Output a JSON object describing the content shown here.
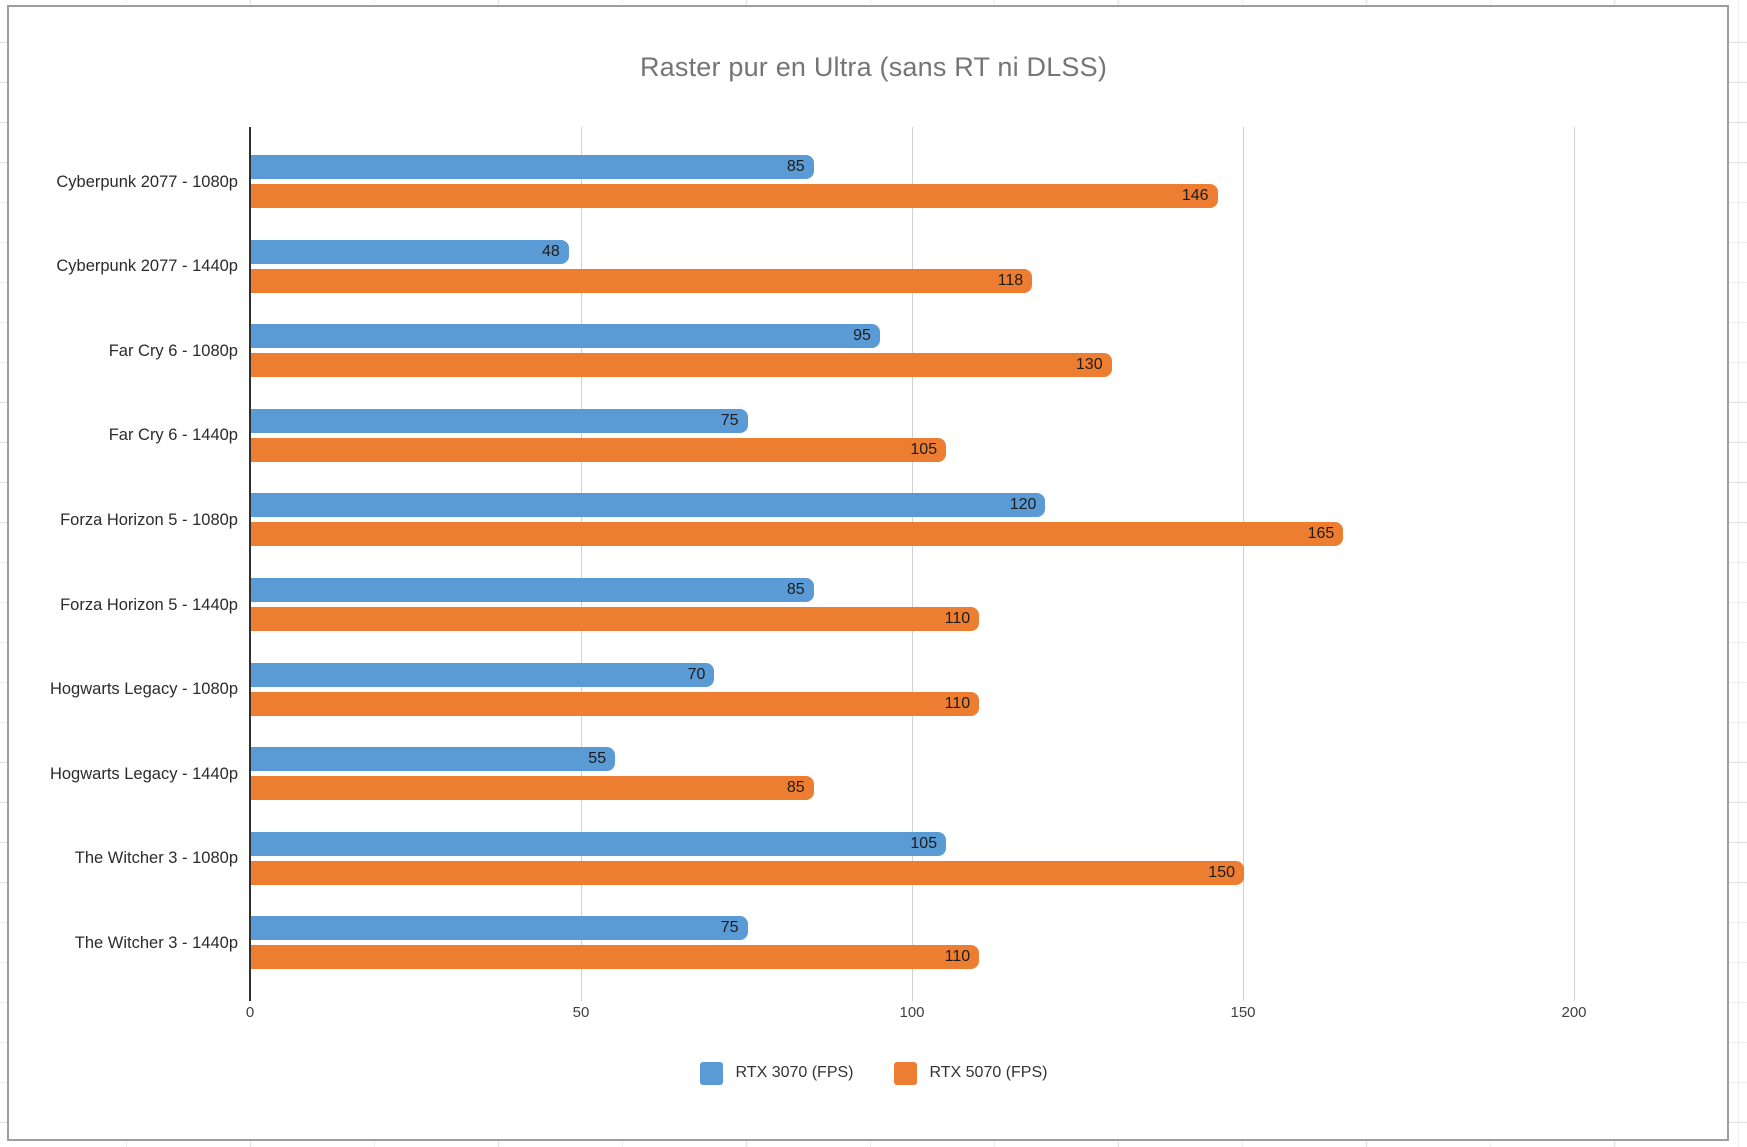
{
  "chart_data": {
    "type": "bar",
    "orientation": "horizontal",
    "title": "Raster pur en Ultra (sans RT ni DLSS)",
    "categories": [
      "Cyberpunk 2077 - 1080p",
      "Cyberpunk 2077 - 1440p",
      "Far Cry 6 - 1080p",
      "Far Cry 6 - 1440p",
      "Forza Horizon 5 - 1080p",
      "Forza Horizon 5 - 1440p",
      "Hogwarts Legacy - 1080p",
      "Hogwarts Legacy - 1440p",
      "The Witcher 3 - 1080p",
      "The Witcher 3 - 1440p"
    ],
    "series": [
      {
        "name": "RTX 3070 (FPS)",
        "color": "#5B9BD5",
        "values": [
          85,
          48,
          95,
          75,
          120,
          85,
          70,
          55,
          105,
          75
        ]
      },
      {
        "name": "RTX 5070 (FPS)",
        "color": "#ED7D31",
        "values": [
          146,
          118,
          130,
          105,
          165,
          110,
          110,
          85,
          150,
          110
        ]
      }
    ],
    "x_ticks": [
      0,
      50,
      100,
      150,
      200
    ],
    "xlim": [
      0,
      200
    ],
    "grid": true,
    "legend_position": "bottom",
    "data_labels": "inside-end"
  }
}
